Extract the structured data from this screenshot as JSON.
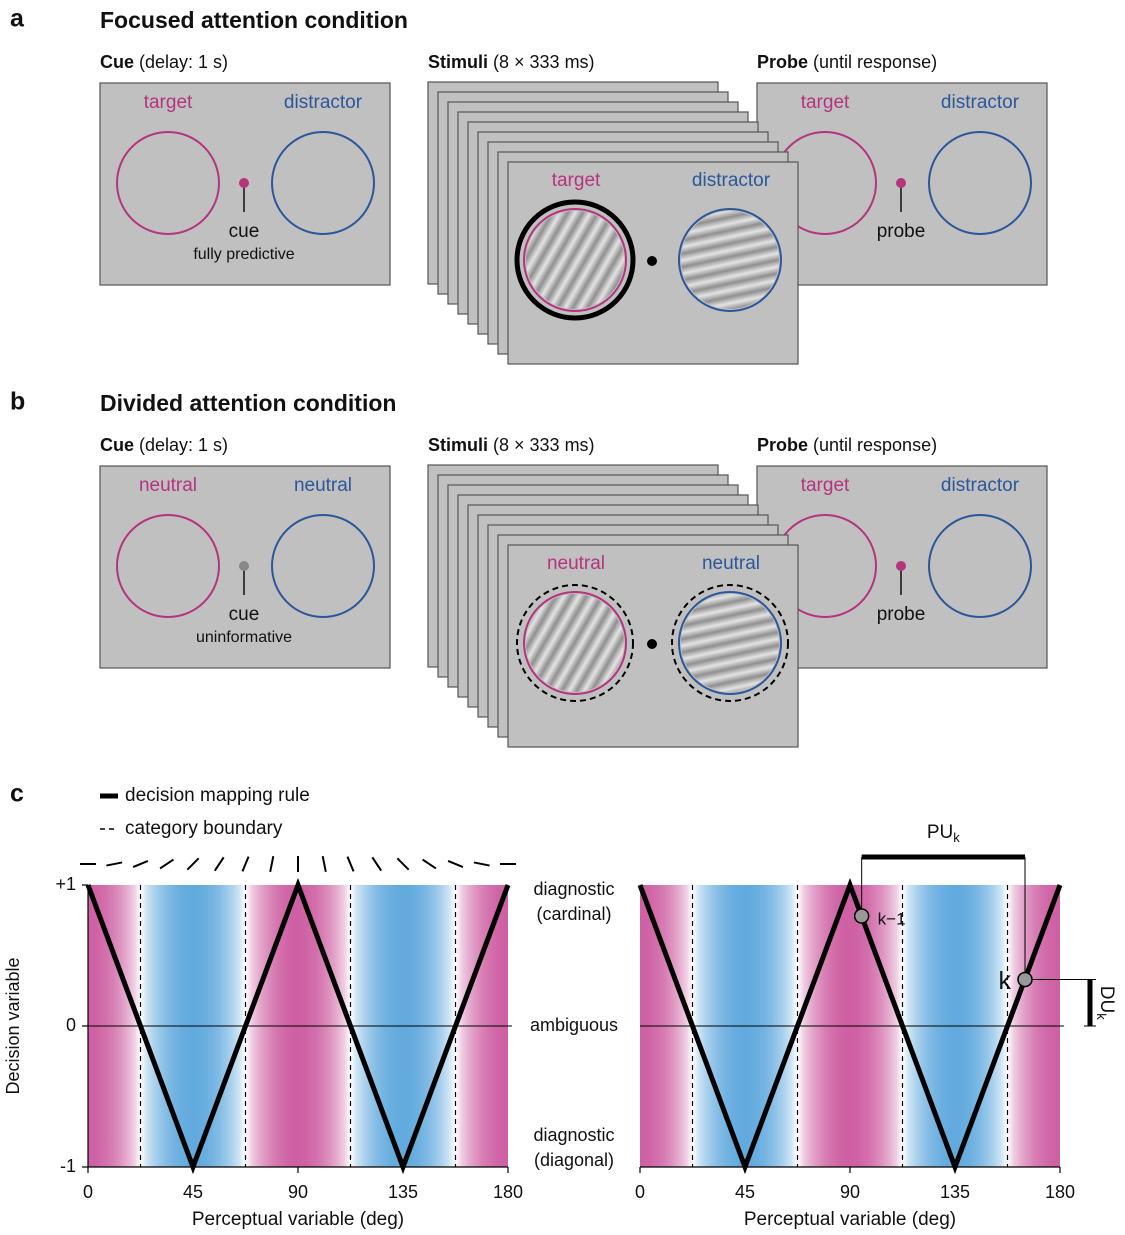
{
  "panel_a": {
    "letter": "a",
    "title": "Focused attention condition",
    "cue_frame": {
      "heading": "Cue",
      "detail": "(delay: 1 s)",
      "left_label": "target",
      "right_label": "distractor",
      "marker_label": "cue",
      "marker_note": "fully predictive"
    },
    "stimulus_frame": {
      "heading": "Stimuli",
      "detail": "(8 × 333 ms)",
      "left_label": "target",
      "right_label": "distractor"
    },
    "probe_frame": {
      "heading": "Probe",
      "detail": "(until response)",
      "left_label": "target",
      "right_label": "distractor",
      "marker_label": "probe"
    }
  },
  "panel_b": {
    "letter": "b",
    "title": "Divided attention condition",
    "cue_frame": {
      "heading": "Cue",
      "detail": "(delay: 1 s)",
      "left_label": "neutral",
      "right_label": "neutral",
      "marker_label": "cue",
      "marker_note": "uninformative"
    },
    "stimulus_frame": {
      "heading": "Stimuli",
      "detail": "(8 × 333 ms)",
      "left_label": "neutral",
      "right_label": "neutral"
    },
    "probe_frame": {
      "heading": "Probe",
      "detail": "(until response)",
      "left_label": "target",
      "right_label": "distractor",
      "marker_label": "probe"
    }
  },
  "panel_c": {
    "letter": "c",
    "legend": {
      "solid": "decision mapping rule",
      "dashed": "category boundary"
    },
    "state_labels": {
      "top": [
        "diagnostic",
        "(cardinal)"
      ],
      "middle": "ambiguous",
      "bottom": [
        "diagnostic",
        "(diagonal)"
      ]
    }
  },
  "chart_data": [
    {
      "type": "line",
      "x": [
        0,
        45,
        90,
        135,
        180
      ],
      "values": [
        1,
        -1,
        1,
        -1,
        1
      ],
      "color": "#000000",
      "xlim": [
        0,
        180
      ],
      "ylim": [
        -1,
        1
      ],
      "xticks": [
        0,
        45,
        90,
        135,
        180
      ],
      "yticks": [
        {
          "value": 1,
          "label": "+1"
        },
        0,
        -1
      ],
      "xlabel": "Perceptual variable (deg)",
      "ylabel": "Decision variable",
      "category_boundaries": [
        22.5,
        67.5,
        112.5,
        157.5
      ]
    },
    {
      "type": "line",
      "x": [
        0,
        45,
        90,
        135,
        180
      ],
      "values": [
        1,
        -1,
        1,
        -1,
        1
      ],
      "color": "#000000",
      "xlim": [
        0,
        180
      ],
      "ylim": [
        -1,
        1
      ],
      "xticks": [
        0,
        45,
        90,
        135,
        180
      ],
      "xlabel": "Perceptual variable (deg)",
      "category_boundaries": [
        22.5,
        67.5,
        112.5,
        157.5
      ],
      "points": [
        {
          "x": 95,
          "y": 0.78,
          "label": "k−1"
        },
        {
          "x": 165,
          "y": 0.33,
          "label": "k"
        }
      ],
      "annotations": {
        "pu": {
          "main": "PU",
          "sub": "k"
        },
        "du": {
          "main": "DU",
          "sub": "k"
        }
      }
    }
  ]
}
